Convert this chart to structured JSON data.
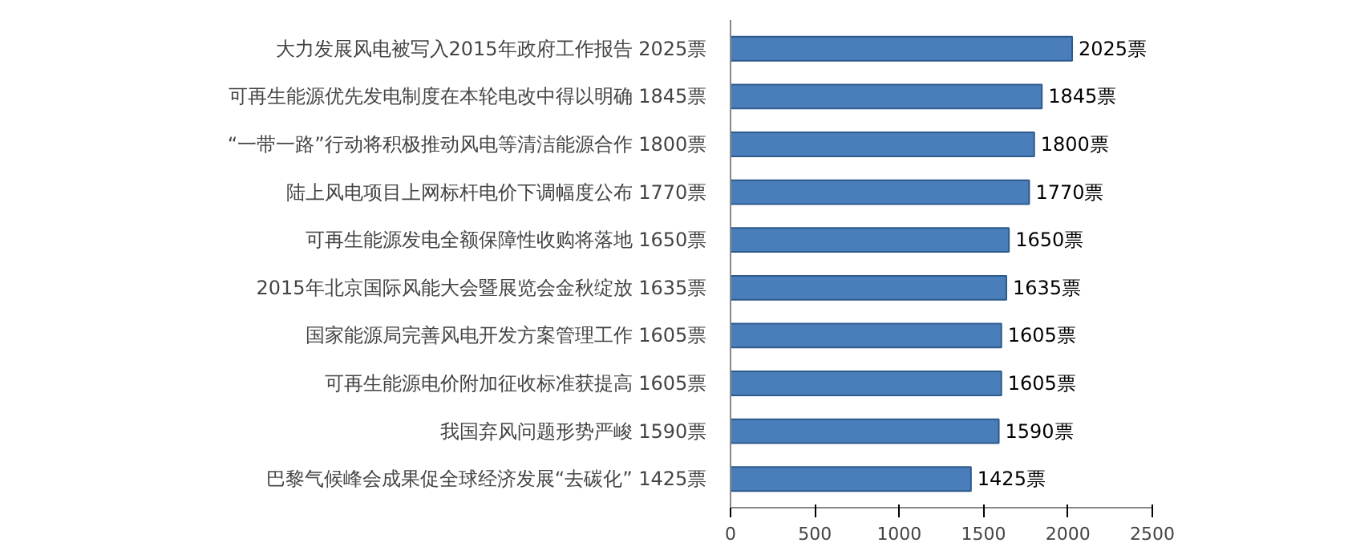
{
  "chart_data": {
    "type": "bar",
    "orientation": "horizontal",
    "categories": [
      "大力发展风电被写入2015年政府工作报告  2025票",
      "可再生能源优先发电制度在本轮电改中得以明确  1845票",
      "“一带一路”行动将积极推动风电等清洁能源合作  1800票",
      "陆上风电项目上网标杆电价下调幅度公布  1770票",
      "可再生能源发电全额保障性收购将落地  1650票",
      "2015年北京国际风能大会暨展览会金秋绽放  1635票",
      "国家能源局完善风电开发方案管理工作  1605票",
      "可再生能源电价附加征收标准获提高  1605票",
      "我国弃风问题形势严峻  1590票",
      "巴黎气候峰会成果促全球经济发展“去碳化”  1425票"
    ],
    "values": [
      2025,
      1845,
      1800,
      1770,
      1650,
      1635,
      1605,
      1605,
      1590,
      1425
    ],
    "value_labels": [
      "2025票",
      "1845票",
      "1800票",
      "1770票",
      "1650票",
      "1635票",
      "1605票",
      "1605票",
      "1590票",
      "1425票"
    ],
    "color": "#4a7ebb",
    "xlim": [
      0,
      2500
    ],
    "xticks": [
      0,
      500,
      1000,
      1500,
      2000,
      2500
    ],
    "grid": false
  }
}
